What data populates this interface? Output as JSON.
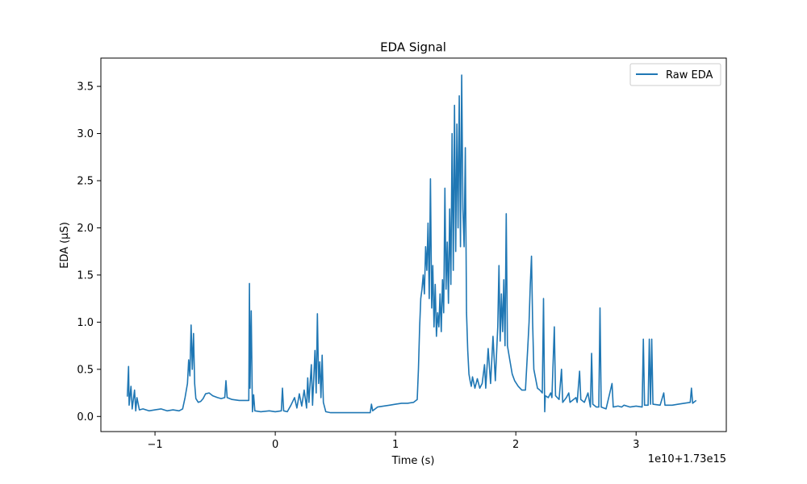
{
  "chart_data": {
    "type": "line",
    "title": "EDA Signal",
    "xlabel": "Time (s)",
    "ylabel": "EDA (µS)",
    "x_offset_label": "1e10+1.73e15",
    "xlim": [
      -1.45,
      3.75
    ],
    "ylim": [
      -0.16,
      3.8
    ],
    "x_ticks": [
      -1,
      0,
      1,
      2,
      3
    ],
    "x_tick_labels": [
      "−1",
      "0",
      "1",
      "2",
      "3"
    ],
    "y_ticks": [
      0.0,
      0.5,
      1.0,
      1.5,
      2.0,
      2.5,
      3.0,
      3.5
    ],
    "y_tick_labels": [
      "0.0",
      "0.5",
      "1.0",
      "1.5",
      "2.0",
      "2.5",
      "3.0",
      "3.5"
    ],
    "grid": false,
    "legend_position": "upper right",
    "series": [
      {
        "name": "Raw EDA",
        "color": "#1f77b4",
        "points": [
          [
            -1.23,
            0.21
          ],
          [
            -1.22,
            0.53
          ],
          [
            -1.215,
            0.12
          ],
          [
            -1.2,
            0.32
          ],
          [
            -1.19,
            0.08
          ],
          [
            -1.17,
            0.28
          ],
          [
            -1.16,
            0.06
          ],
          [
            -1.15,
            0.2
          ],
          [
            -1.13,
            0.07
          ],
          [
            -1.1,
            0.08
          ],
          [
            -1.05,
            0.06
          ],
          [
            -1.0,
            0.07
          ],
          [
            -0.95,
            0.08
          ],
          [
            -0.9,
            0.06
          ],
          [
            -0.85,
            0.07
          ],
          [
            -0.8,
            0.06
          ],
          [
            -0.77,
            0.08
          ],
          [
            -0.75,
            0.2
          ],
          [
            -0.73,
            0.35
          ],
          [
            -0.72,
            0.6
          ],
          [
            -0.71,
            0.43
          ],
          [
            -0.7,
            0.97
          ],
          [
            -0.69,
            0.5
          ],
          [
            -0.68,
            0.88
          ],
          [
            -0.67,
            0.35
          ],
          [
            -0.66,
            0.19
          ],
          [
            -0.64,
            0.15
          ],
          [
            -0.62,
            0.16
          ],
          [
            -0.6,
            0.19
          ],
          [
            -0.58,
            0.24
          ],
          [
            -0.55,
            0.25
          ],
          [
            -0.52,
            0.22
          ],
          [
            -0.48,
            0.2
          ],
          [
            -0.45,
            0.19
          ],
          [
            -0.42,
            0.2
          ],
          [
            -0.41,
            0.38
          ],
          [
            -0.4,
            0.2
          ],
          [
            -0.36,
            0.18
          ],
          [
            -0.3,
            0.17
          ],
          [
            -0.25,
            0.17
          ],
          [
            -0.22,
            0.17
          ],
          [
            -0.215,
            1.41
          ],
          [
            -0.21,
            0.3
          ],
          [
            -0.2,
            1.12
          ],
          [
            -0.19,
            0.05
          ],
          [
            -0.18,
            0.23
          ],
          [
            -0.17,
            0.06
          ],
          [
            -0.12,
            0.05
          ],
          [
            -0.05,
            0.06
          ],
          [
            0.0,
            0.05
          ],
          [
            0.05,
            0.06
          ],
          [
            0.06,
            0.3
          ],
          [
            0.07,
            0.06
          ],
          [
            0.1,
            0.05
          ],
          [
            0.13,
            0.12
          ],
          [
            0.16,
            0.2
          ],
          [
            0.18,
            0.09
          ],
          [
            0.2,
            0.24
          ],
          [
            0.22,
            0.11
          ],
          [
            0.24,
            0.28
          ],
          [
            0.26,
            0.09
          ],
          [
            0.27,
            0.41
          ],
          [
            0.28,
            0.15
          ],
          [
            0.3,
            0.55
          ],
          [
            0.31,
            0.12
          ],
          [
            0.33,
            0.7
          ],
          [
            0.34,
            0.25
          ],
          [
            0.35,
            1.09
          ],
          [
            0.36,
            0.35
          ],
          [
            0.37,
            0.58
          ],
          [
            0.38,
            0.2
          ],
          [
            0.39,
            0.65
          ],
          [
            0.4,
            0.15
          ],
          [
            0.42,
            0.05
          ],
          [
            0.46,
            0.04
          ],
          [
            0.5,
            0.04
          ],
          [
            0.55,
            0.04
          ],
          [
            0.6,
            0.04
          ],
          [
            0.65,
            0.04
          ],
          [
            0.7,
            0.04
          ],
          [
            0.75,
            0.04
          ],
          [
            0.79,
            0.04
          ],
          [
            0.8,
            0.13
          ],
          [
            0.81,
            0.06
          ],
          [
            0.85,
            0.1
          ],
          [
            0.9,
            0.11
          ],
          [
            0.95,
            0.12
          ],
          [
            1.0,
            0.13
          ],
          [
            1.05,
            0.14
          ],
          [
            1.1,
            0.14
          ],
          [
            1.15,
            0.15
          ],
          [
            1.18,
            0.18
          ],
          [
            1.19,
            0.5
          ],
          [
            1.2,
            0.95
          ],
          [
            1.21,
            1.25
          ],
          [
            1.22,
            1.35
          ],
          [
            1.23,
            1.5
          ],
          [
            1.24,
            1.3
          ],
          [
            1.25,
            1.8
          ],
          [
            1.26,
            1.55
          ],
          [
            1.27,
            2.05
          ],
          [
            1.28,
            1.25
          ],
          [
            1.29,
            2.52
          ],
          [
            1.3,
            1.15
          ],
          [
            1.31,
            1.6
          ],
          [
            1.32,
            0.95
          ],
          [
            1.33,
            1.4
          ],
          [
            1.34,
            0.85
          ],
          [
            1.35,
            1.1
          ],
          [
            1.36,
            0.95
          ],
          [
            1.37,
            1.3
          ],
          [
            1.38,
            0.9
          ],
          [
            1.39,
            1.45
          ],
          [
            1.4,
            1.1
          ],
          [
            1.41,
            2.42
          ],
          [
            1.42,
            1.35
          ],
          [
            1.43,
            1.85
          ],
          [
            1.44,
            1.2
          ],
          [
            1.45,
            2.2
          ],
          [
            1.46,
            1.4
          ],
          [
            1.47,
            3.0
          ],
          [
            1.48,
            1.55
          ],
          [
            1.49,
            3.3
          ],
          [
            1.5,
            1.75
          ],
          [
            1.51,
            3.1
          ],
          [
            1.52,
            2.0
          ],
          [
            1.53,
            3.4
          ],
          [
            1.54,
            1.8
          ],
          [
            1.55,
            3.62
          ],
          [
            1.56,
            2.2
          ],
          [
            1.57,
            1.8
          ],
          [
            1.58,
            2.85
          ],
          [
            1.59,
            1.1
          ],
          [
            1.6,
            0.7
          ],
          [
            1.61,
            0.45
          ],
          [
            1.62,
            0.38
          ],
          [
            1.63,
            0.32
          ],
          [
            1.64,
            0.42
          ],
          [
            1.66,
            0.3
          ],
          [
            1.68,
            0.4
          ],
          [
            1.7,
            0.3
          ],
          [
            1.72,
            0.35
          ],
          [
            1.74,
            0.55
          ],
          [
            1.75,
            0.3
          ],
          [
            1.77,
            0.72
          ],
          [
            1.79,
            0.35
          ],
          [
            1.81,
            0.85
          ],
          [
            1.83,
            0.38
          ],
          [
            1.85,
            0.95
          ],
          [
            1.86,
            1.6
          ],
          [
            1.87,
            0.8
          ],
          [
            1.88,
            1.3
          ],
          [
            1.89,
            0.9
          ],
          [
            1.9,
            1.45
          ],
          [
            1.91,
            0.75
          ],
          [
            1.92,
            2.15
          ],
          [
            1.93,
            0.75
          ],
          [
            1.95,
            0.6
          ],
          [
            1.97,
            0.45
          ],
          [
            1.99,
            0.38
          ],
          [
            2.02,
            0.32
          ],
          [
            2.05,
            0.28
          ],
          [
            2.08,
            0.28
          ],
          [
            2.1,
            0.75
          ],
          [
            2.11,
            1.0
          ],
          [
            2.12,
            1.4
          ],
          [
            2.13,
            1.7
          ],
          [
            2.14,
            1.0
          ],
          [
            2.15,
            0.5
          ],
          [
            2.18,
            0.3
          ],
          [
            2.2,
            0.28
          ],
          [
            2.22,
            0.25
          ],
          [
            2.23,
            1.25
          ],
          [
            2.24,
            0.05
          ],
          [
            2.245,
            0.22
          ],
          [
            2.27,
            0.2
          ],
          [
            2.29,
            0.25
          ],
          [
            2.3,
            0.2
          ],
          [
            2.32,
            0.95
          ],
          [
            2.33,
            0.22
          ],
          [
            2.36,
            0.18
          ],
          [
            2.38,
            0.5
          ],
          [
            2.39,
            0.15
          ],
          [
            2.42,
            0.2
          ],
          [
            2.44,
            0.25
          ],
          [
            2.45,
            0.15
          ],
          [
            2.48,
            0.18
          ],
          [
            2.5,
            0.2
          ],
          [
            2.51,
            0.15
          ],
          [
            2.53,
            0.48
          ],
          [
            2.54,
            0.18
          ],
          [
            2.57,
            0.15
          ],
          [
            2.6,
            0.25
          ],
          [
            2.62,
            0.1
          ],
          [
            2.63,
            0.67
          ],
          [
            2.64,
            0.13
          ],
          [
            2.67,
            0.1
          ],
          [
            2.69,
            0.1
          ],
          [
            2.7,
            1.15
          ],
          [
            2.71,
            0.1
          ],
          [
            2.75,
            0.08
          ],
          [
            2.8,
            0.35
          ],
          [
            2.81,
            0.1
          ],
          [
            2.85,
            0.11
          ],
          [
            2.88,
            0.1
          ],
          [
            2.9,
            0.12
          ],
          [
            2.95,
            0.1
          ],
          [
            3.0,
            0.11
          ],
          [
            3.05,
            0.1
          ],
          [
            3.06,
            0.82
          ],
          [
            3.07,
            0.12
          ],
          [
            3.1,
            0.12
          ],
          [
            3.11,
            0.82
          ],
          [
            3.12,
            0.13
          ],
          [
            3.13,
            0.82
          ],
          [
            3.14,
            0.13
          ],
          [
            3.2,
            0.12
          ],
          [
            3.23,
            0.25
          ],
          [
            3.24,
            0.12
          ],
          [
            3.3,
            0.12
          ],
          [
            3.35,
            0.13
          ],
          [
            3.4,
            0.14
          ],
          [
            3.45,
            0.15
          ],
          [
            3.46,
            0.3
          ],
          [
            3.47,
            0.14
          ],
          [
            3.5,
            0.17
          ]
        ]
      }
    ]
  }
}
